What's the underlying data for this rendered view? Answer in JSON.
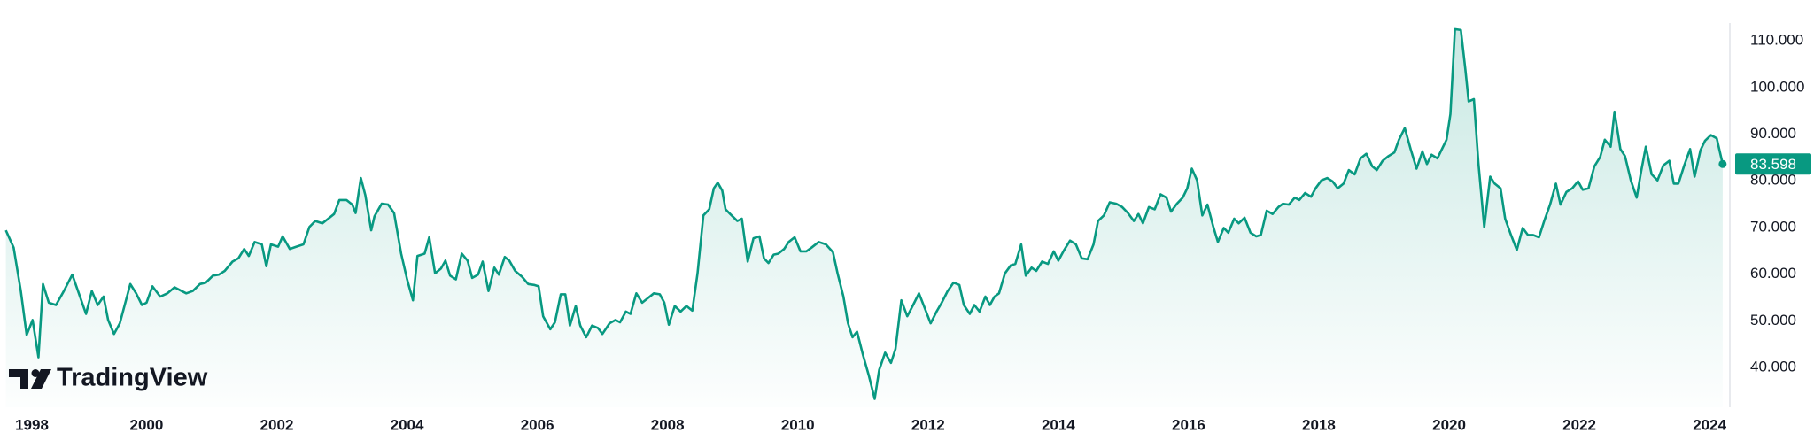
{
  "chart_data": {
    "type": "area",
    "watermark": "TradingView",
    "color": "#089981",
    "grid": false,
    "x": [
      1997.84,
      1997.96,
      1998.07,
      1998.16,
      1998.25,
      1998.34,
      1998.41,
      1998.5,
      1998.61,
      1998.73,
      1998.86,
      1998.96,
      1999.07,
      1999.16,
      1999.25,
      1999.34,
      1999.41,
      1999.5,
      1999.59,
      1999.75,
      1999.84,
      1999.93,
      2000.0,
      2000.09,
      2000.21,
      2000.32,
      2000.43,
      2000.54,
      2000.61,
      2000.71,
      2000.82,
      2000.91,
      2001.02,
      2001.11,
      2001.2,
      2001.32,
      2001.41,
      2001.5,
      2001.57,
      2001.66,
      2001.77,
      2001.84,
      2001.91,
      2002.02,
      2002.09,
      2002.2,
      2002.3,
      2002.41,
      2002.5,
      2002.59,
      2002.7,
      2002.79,
      2002.88,
      2002.96,
      2003.07,
      2003.16,
      2003.21,
      2003.29,
      2003.36,
      2003.45,
      2003.5,
      2003.61,
      2003.71,
      2003.8,
      2003.91,
      2004.0,
      2004.09,
      2004.16,
      2004.27,
      2004.34,
      2004.43,
      2004.52,
      2004.59,
      2004.66,
      2004.75,
      2004.84,
      2004.93,
      2005.0,
      2005.09,
      2005.16,
      2005.25,
      2005.34,
      2005.41,
      2005.5,
      2005.57,
      2005.66,
      2005.77,
      2005.86,
      2005.95,
      2006.02,
      2006.09,
      2006.2,
      2006.27,
      2006.36,
      2006.43,
      2006.5,
      2006.59,
      2006.66,
      2006.75,
      2006.84,
      2006.93,
      2007.0,
      2007.11,
      2007.2,
      2007.27,
      2007.36,
      2007.43,
      2007.52,
      2007.61,
      2007.7,
      2007.79,
      2007.88,
      2007.95,
      2008.02,
      2008.11,
      2008.2,
      2008.29,
      2008.38,
      2008.46,
      2008.55,
      2008.64,
      2008.71,
      2008.77,
      2008.84,
      2008.89,
      2008.96,
      2009.07,
      2009.14,
      2009.23,
      2009.32,
      2009.41,
      2009.48,
      2009.55,
      2009.63,
      2009.7,
      2009.79,
      2009.86,
      2009.95,
      2010.04,
      2010.13,
      2010.21,
      2010.32,
      2010.43,
      2010.54,
      2010.61,
      2010.7,
      2010.77,
      2010.84,
      2010.91,
      2011.0,
      2011.09,
      2011.18,
      2011.25,
      2011.34,
      2011.43,
      2011.5,
      2011.59,
      2011.68,
      2011.77,
      2011.86,
      2011.95,
      2012.04,
      2012.13,
      2012.21,
      2012.3,
      2012.39,
      2012.48,
      2012.55,
      2012.64,
      2012.71,
      2012.79,
      2012.88,
      2012.95,
      2013.02,
      2013.09,
      2013.18,
      2013.27,
      2013.34,
      2013.43,
      2013.5,
      2013.59,
      2013.66,
      2013.75,
      2013.84,
      2013.93,
      2014.0,
      2014.09,
      2014.18,
      2014.27,
      2014.36,
      2014.45,
      2014.54,
      2014.61,
      2014.7,
      2014.79,
      2014.89,
      2014.98,
      2015.07,
      2015.16,
      2015.23,
      2015.3,
      2015.39,
      2015.48,
      2015.57,
      2015.66,
      2015.73,
      2015.82,
      2015.91,
      2015.98,
      2016.05,
      2016.13,
      2016.21,
      2016.29,
      2016.38,
      2016.45,
      2016.54,
      2016.61,
      2016.7,
      2016.77,
      2016.86,
      2016.95,
      2017.04,
      2017.11,
      2017.2,
      2017.29,
      2017.38,
      2017.45,
      2017.54,
      2017.63,
      2017.7,
      2017.79,
      2017.88,
      2017.95,
      2018.04,
      2018.13,
      2018.21,
      2018.29,
      2018.38,
      2018.46,
      2018.55,
      2018.64,
      2018.73,
      2018.82,
      2018.89,
      2018.98,
      2019.07,
      2019.16,
      2019.23,
      2019.32,
      2019.41,
      2019.5,
      2019.59,
      2019.66,
      2019.73,
      2019.82,
      2019.89,
      2019.96,
      2020.02,
      2020.09,
      2020.18,
      2020.25,
      2020.3,
      2020.38,
      2020.45,
      2020.54,
      2020.63,
      2020.7,
      2020.79,
      2020.86,
      2020.95,
      2021.04,
      2021.13,
      2021.21,
      2021.29,
      2021.38,
      2021.46,
      2021.55,
      2021.64,
      2021.71,
      2021.8,
      2021.89,
      2021.98,
      2022.05,
      2022.14,
      2022.23,
      2022.32,
      2022.39,
      2022.48,
      2022.54,
      2022.63,
      2022.7,
      2022.79,
      2022.88,
      2022.95,
      2023.02,
      2023.11,
      2023.2,
      2023.29,
      2023.38,
      2023.45,
      2023.52,
      2023.61,
      2023.7,
      2023.77,
      2023.86,
      2023.93,
      2024.02,
      2024.11,
      2024.2
    ],
    "values": [
      69.4,
      65.7,
      56.4,
      47.0,
      50.2,
      42.2,
      57.9,
      53.9,
      53.4,
      56.4,
      59.9,
      55.9,
      51.5,
      56.4,
      53.4,
      55.2,
      50.2,
      47.2,
      49.5,
      57.9,
      55.9,
      53.4,
      53.9,
      57.4,
      55.2,
      55.9,
      57.2,
      56.4,
      55.9,
      56.4,
      57.9,
      58.2,
      59.7,
      59.9,
      60.7,
      62.7,
      63.4,
      65.4,
      63.9,
      66.9,
      66.4,
      61.7,
      66.4,
      65.9,
      68.1,
      65.4,
      65.9,
      66.4,
      70.1,
      71.4,
      70.9,
      71.9,
      72.9,
      75.9,
      75.9,
      74.9,
      73.1,
      80.6,
      76.9,
      69.4,
      72.4,
      75.1,
      74.9,
      73.1,
      64.4,
      58.9,
      54.4,
      63.9,
      64.4,
      67.9,
      60.2,
      61.2,
      62.9,
      59.7,
      58.9,
      64.4,
      62.9,
      59.2,
      59.9,
      62.7,
      56.4,
      61.4,
      59.9,
      63.7,
      62.9,
      60.7,
      59.4,
      57.9,
      57.7,
      57.4,
      51.0,
      48.2,
      49.7,
      55.7,
      55.7,
      49.0,
      53.2,
      49.0,
      46.5,
      49.0,
      48.5,
      47.2,
      49.5,
      50.2,
      49.7,
      52.0,
      51.5,
      55.9,
      53.9,
      54.9,
      55.9,
      55.7,
      53.9,
      49.2,
      53.2,
      52.0,
      53.2,
      52.2,
      60.2,
      72.6,
      73.9,
      78.4,
      79.6,
      77.9,
      73.9,
      72.9,
      71.4,
      71.9,
      62.7,
      67.7,
      68.1,
      63.4,
      62.4,
      64.2,
      64.4,
      65.4,
      66.9,
      67.9,
      64.9,
      64.9,
      65.7,
      66.9,
      66.4,
      64.7,
      60.2,
      55.2,
      49.5,
      46.5,
      47.7,
      42.7,
      38.3,
      33.3,
      39.5,
      43.2,
      41.0,
      44.0,
      54.4,
      51.0,
      53.4,
      55.9,
      52.7,
      49.5,
      52.0,
      53.9,
      56.4,
      58.2,
      57.7,
      53.4,
      51.5,
      53.4,
      52.0,
      55.2,
      53.4,
      55.2,
      55.9,
      60.2,
      61.9,
      62.2,
      66.4,
      59.7,
      61.4,
      60.7,
      62.7,
      62.2,
      64.9,
      62.9,
      65.2,
      67.2,
      66.4,
      63.4,
      63.2,
      66.4,
      71.4,
      72.6,
      75.4,
      75.1,
      74.4,
      73.1,
      71.4,
      72.9,
      70.9,
      74.4,
      73.9,
      77.1,
      76.4,
      73.4,
      75.1,
      76.4,
      78.4,
      82.6,
      80.1,
      72.6,
      74.9,
      70.1,
      66.9,
      69.9,
      68.9,
      71.9,
      70.9,
      72.1,
      68.9,
      68.1,
      68.4,
      73.6,
      72.9,
      74.4,
      75.1,
      74.9,
      76.4,
      75.9,
      77.4,
      76.6,
      78.4,
      80.1,
      80.6,
      79.9,
      78.4,
      79.4,
      82.3,
      81.4,
      84.8,
      85.8,
      83.1,
      82.3,
      84.3,
      85.3,
      86.1,
      88.8,
      91.3,
      86.8,
      82.6,
      86.3,
      83.6,
      85.6,
      84.8,
      86.8,
      88.8,
      94.3,
      112.5,
      112.3,
      103.8,
      97.0,
      97.5,
      83.8,
      70.1,
      80.9,
      79.4,
      78.4,
      71.9,
      68.4,
      65.2,
      69.9,
      68.4,
      68.4,
      67.9,
      71.4,
      74.9,
      79.4,
      74.9,
      77.6,
      78.4,
      79.9,
      78.1,
      78.4,
      83.1,
      85.1,
      88.8,
      87.3,
      94.8,
      86.8,
      85.3,
      80.1,
      76.4,
      82.1,
      87.3,
      81.4,
      80.1,
      83.3,
      84.3,
      79.4,
      79.4,
      83.3,
      86.8,
      80.9,
      86.6,
      88.6,
      89.8,
      89.1,
      83.598
    ],
    "xlim": [
      1997.75,
      2024.27
    ],
    "xticks": [
      1998,
      2000,
      2002,
      2004,
      2006,
      2008,
      2010,
      2012,
      2014,
      2016,
      2018,
      2020,
      2022,
      2024
    ],
    "ylim": [
      31.5,
      113.8
    ],
    "yticks": [
      {
        "value": 40,
        "label": "40.000"
      },
      {
        "value": 50,
        "label": "50.000"
      },
      {
        "value": 60,
        "label": "60.000"
      },
      {
        "value": 70,
        "label": "70.000"
      },
      {
        "value": 80,
        "label": "80.000"
      },
      {
        "value": 90,
        "label": "90.000"
      },
      {
        "value": 100,
        "label": "100.000"
      },
      {
        "value": 110,
        "label": "110.000"
      }
    ]
  }
}
